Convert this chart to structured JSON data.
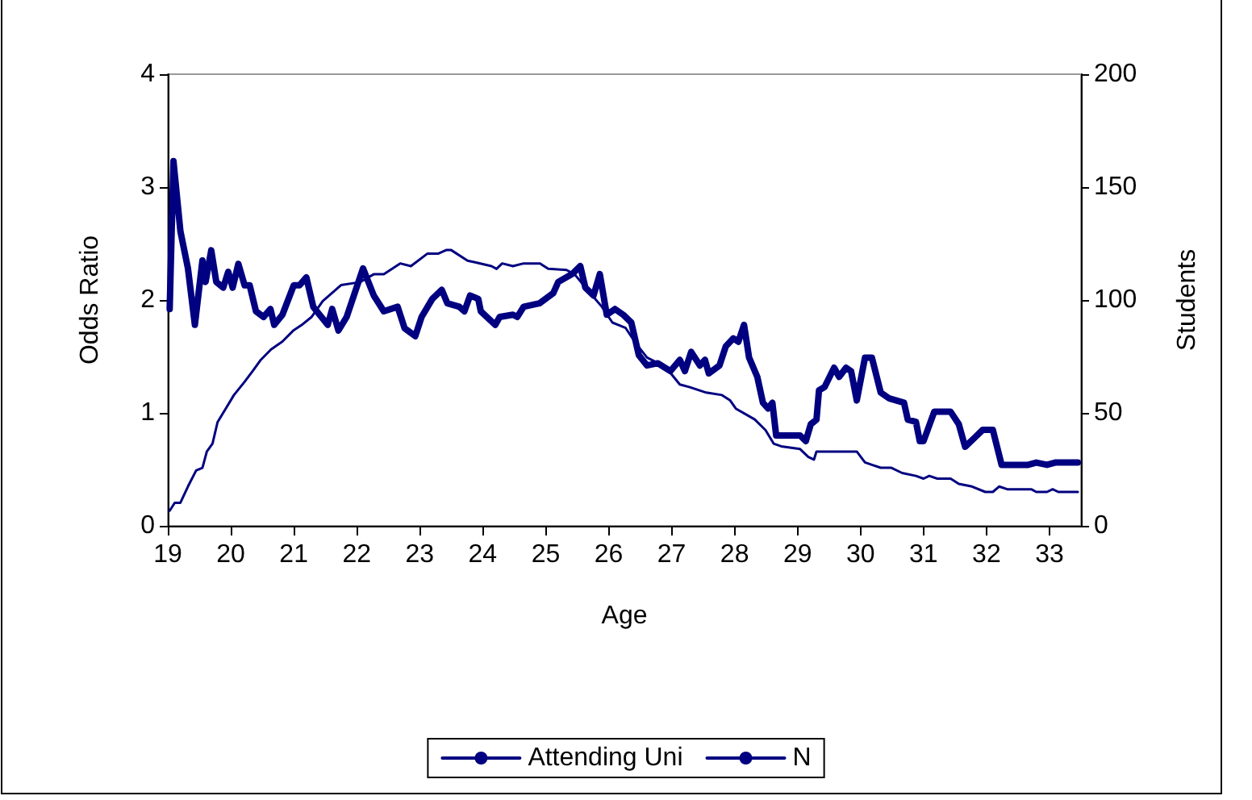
{
  "chart_data": {
    "type": "line",
    "xlabel": "Age",
    "ylabel": "Odds Ratio",
    "y2label": "Students",
    "xlim": [
      19,
      33.5
    ],
    "xticks": [
      19,
      20,
      21,
      22,
      23,
      24,
      25,
      26,
      27,
      28,
      29,
      30,
      31,
      32,
      33
    ],
    "ylim": [
      0,
      4
    ],
    "yticks": [
      0,
      1,
      2,
      3,
      4
    ],
    "y2lim": [
      0,
      200
    ],
    "y2ticks": [
      0,
      50,
      100,
      150,
      200
    ],
    "grid": false,
    "legend": "bottom",
    "marker": "none",
    "line_style": "solid",
    "series": [
      {
        "name": "Attending Uni",
        "color": "#000080",
        "axis": "y",
        "x": [
          19.03,
          19.09,
          19.2,
          19.32,
          19.43,
          19.55,
          19.6,
          19.69,
          19.77,
          19.88,
          19.96,
          20.03,
          20.12,
          20.22,
          20.3,
          20.4,
          20.52,
          20.63,
          20.69,
          20.82,
          21.0,
          21.09,
          21.2,
          21.31,
          21.41,
          21.54,
          21.61,
          21.71,
          21.84,
          22.1,
          22.27,
          22.43,
          22.65,
          22.76,
          22.93,
          23.03,
          23.2,
          23.35,
          23.44,
          23.63,
          23.71,
          23.8,
          23.93,
          23.97,
          24.2,
          24.27,
          24.48,
          24.55,
          24.65,
          24.9,
          25.12,
          25.2,
          25.42,
          25.55,
          25.63,
          25.76,
          25.86,
          25.97,
          26.1,
          26.23,
          26.36,
          26.48,
          26.61,
          26.78,
          26.98,
          27.13,
          27.21,
          27.31,
          27.45,
          27.53,
          27.59,
          27.76,
          27.86,
          27.98,
          28.06,
          28.15,
          28.23,
          28.36,
          28.45,
          28.53,
          28.6,
          28.66,
          29.04,
          29.13,
          29.21,
          29.3,
          29.34,
          29.43,
          29.58,
          29.66,
          29.77,
          29.85,
          29.94,
          30.07,
          30.18,
          30.32,
          30.45,
          30.57,
          30.69,
          30.75,
          30.88,
          30.94,
          31.0,
          31.17,
          31.43,
          31.56,
          31.66,
          31.81,
          31.94,
          32.1,
          32.24,
          32.66,
          32.79,
          32.96,
          33.09,
          33.45
        ],
        "values": [
          1.92,
          3.23,
          2.61,
          2.28,
          1.78,
          2.35,
          2.16,
          2.44,
          2.16,
          2.11,
          2.25,
          2.11,
          2.32,
          2.13,
          2.13,
          1.9,
          1.85,
          1.92,
          1.78,
          1.87,
          2.13,
          2.13,
          2.2,
          1.94,
          1.87,
          1.78,
          1.92,
          1.73,
          1.85,
          2.28,
          2.04,
          1.9,
          1.94,
          1.75,
          1.68,
          1.85,
          2.01,
          2.09,
          1.97,
          1.94,
          1.9,
          2.04,
          2.01,
          1.9,
          1.78,
          1.85,
          1.87,
          1.85,
          1.94,
          1.97,
          2.06,
          2.16,
          2.23,
          2.3,
          2.11,
          2.04,
          2.23,
          1.87,
          1.92,
          1.87,
          1.8,
          1.51,
          1.42,
          1.44,
          1.37,
          1.47,
          1.37,
          1.54,
          1.42,
          1.47,
          1.35,
          1.42,
          1.59,
          1.66,
          1.63,
          1.78,
          1.49,
          1.32,
          1.09,
          1.04,
          1.09,
          0.8,
          0.8,
          0.75,
          0.9,
          0.94,
          1.2,
          1.23,
          1.4,
          1.32,
          1.4,
          1.37,
          1.11,
          1.49,
          1.49,
          1.18,
          1.13,
          1.11,
          1.09,
          0.94,
          0.92,
          0.75,
          0.75,
          1.01,
          1.01,
          0.9,
          0.7,
          0.78,
          0.85,
          0.85,
          0.54,
          0.54,
          0.56,
          0.54,
          0.56,
          0.56
        ]
      },
      {
        "name": "N",
        "color": "#000080",
        "axis": "y2",
        "x": [
          19.03,
          19.11,
          19.2,
          19.32,
          19.45,
          19.55,
          19.62,
          19.71,
          19.79,
          19.92,
          20.05,
          20.22,
          20.35,
          20.47,
          20.64,
          20.82,
          20.99,
          21.12,
          21.28,
          21.46,
          21.75,
          22.05,
          22.27,
          22.43,
          22.69,
          22.86,
          23.12,
          23.29,
          23.42,
          23.5,
          23.76,
          23.88,
          24.14,
          24.22,
          24.31,
          24.48,
          24.65,
          24.91,
          25.04,
          25.33,
          25.46,
          25.67,
          25.89,
          26.06,
          26.27,
          26.44,
          26.61,
          26.78,
          26.99,
          27.13,
          27.29,
          27.55,
          27.8,
          27.93,
          28.02,
          28.32,
          28.49,
          28.62,
          28.74,
          29.04,
          29.17,
          29.26,
          29.3,
          29.94,
          30.07,
          30.19,
          30.32,
          30.49,
          30.66,
          30.88,
          31.0,
          31.09,
          31.22,
          31.43,
          31.56,
          31.77,
          31.98,
          32.1,
          32.2,
          32.33,
          32.71,
          32.79,
          32.96,
          33.05,
          33.14,
          33.45
        ],
        "values": [
          6.7,
          10.2,
          10.2,
          17.4,
          24.5,
          25.7,
          32.9,
          36.4,
          45.9,
          51.9,
          57.9,
          63.8,
          68.6,
          73.3,
          78.1,
          81.6,
          86.4,
          88.8,
          92.4,
          99.5,
          106.6,
          107.9,
          111.4,
          111.4,
          116.2,
          115,
          120.5,
          120.5,
          122.1,
          122.1,
          117.4,
          116.7,
          115,
          113.8,
          116.2,
          115,
          116.2,
          116.2,
          113.8,
          113.3,
          111.4,
          104.3,
          97.1,
          90,
          87.6,
          80.5,
          74.5,
          72.1,
          67.4,
          62.6,
          61.4,
          59,
          57.9,
          55.5,
          51.9,
          47.1,
          42.4,
          36.4,
          35.2,
          34,
          30.5,
          29.3,
          32.9,
          32.9,
          28.1,
          26.9,
          25.7,
          25.7,
          23.4,
          22.1,
          20.9,
          22.1,
          20.9,
          20.9,
          18.6,
          17.4,
          15,
          15,
          17.4,
          16.2,
          16.2,
          15,
          15,
          16.2,
          15,
          15
        ]
      }
    ]
  }
}
